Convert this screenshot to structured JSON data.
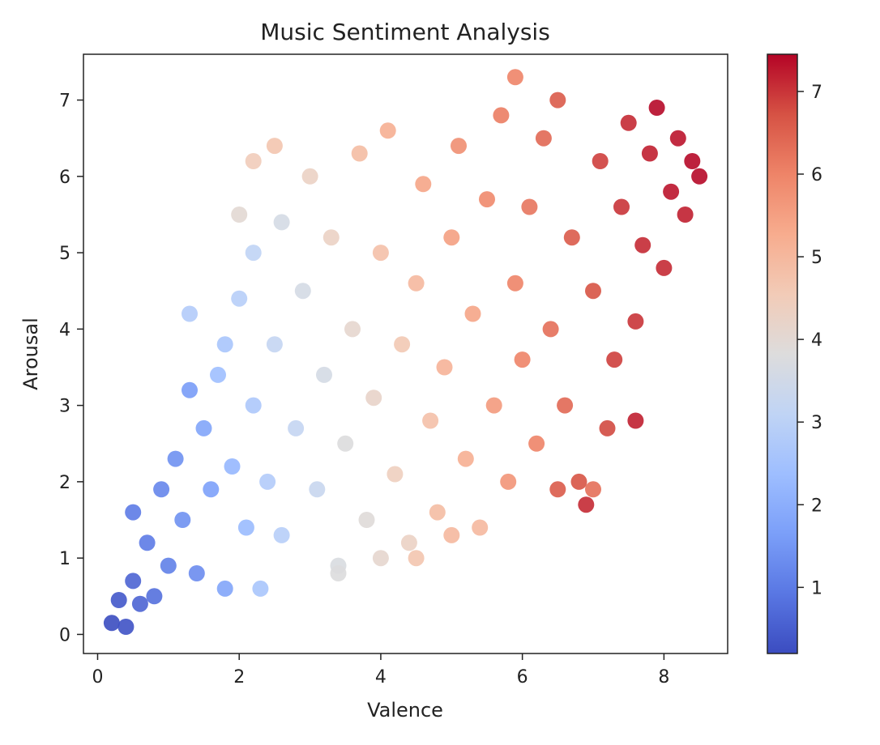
{
  "chart_data": {
    "type": "scatter",
    "title": "Music Sentiment Analysis",
    "xlabel": "Valence",
    "ylabel": "Arousal",
    "xlim": [
      -0.2,
      8.9
    ],
    "ylim": [
      -0.25,
      7.6
    ],
    "x_ticks": [
      {
        "value": 0,
        "label": "0"
      },
      {
        "value": 2,
        "label": "2"
      },
      {
        "value": 4,
        "label": "4"
      },
      {
        "value": 6,
        "label": "6"
      },
      {
        "value": 8,
        "label": "8"
      }
    ],
    "y_ticks": [
      {
        "value": 0,
        "label": "0"
      },
      {
        "value": 1,
        "label": "1"
      },
      {
        "value": 2,
        "label": "2"
      },
      {
        "value": 3,
        "label": "3"
      },
      {
        "value": 4,
        "label": "4"
      },
      {
        "value": 5,
        "label": "5"
      },
      {
        "value": 6,
        "label": "6"
      },
      {
        "value": 7,
        "label": "7"
      }
    ],
    "grid": false,
    "colormap": "coolwarm",
    "colorbar": {
      "range": [
        0.2,
        7.45
      ],
      "ticks": [
        {
          "value": 1,
          "label": "1"
        },
        {
          "value": 2,
          "label": "2"
        },
        {
          "value": 3,
          "label": "3"
        },
        {
          "value": 4,
          "label": "4"
        },
        {
          "value": 5,
          "label": "5"
        },
        {
          "value": 6,
          "label": "6"
        },
        {
          "value": 7,
          "label": "7"
        }
      ],
      "color_stops": [
        "#3b4cc0",
        "#5977e3",
        "#7b9ff9",
        "#9ebeff",
        "#c0d4f5",
        "#dddcdc",
        "#f2cbb7",
        "#f7ac8e",
        "#ee8468",
        "#d65244",
        "#b40426"
      ]
    },
    "points": [
      {
        "x": 0.2,
        "y": 0.15,
        "c": 0.2
      },
      {
        "x": 0.3,
        "y": 0.45,
        "c": 0.4
      },
      {
        "x": 0.4,
        "y": 0.1,
        "c": 0.3
      },
      {
        "x": 0.5,
        "y": 0.7,
        "c": 0.6
      },
      {
        "x": 0.6,
        "y": 0.4,
        "c": 0.6
      },
      {
        "x": 0.5,
        "y": 1.6,
        "c": 1.0
      },
      {
        "x": 0.7,
        "y": 1.2,
        "c": 1.0
      },
      {
        "x": 0.8,
        "y": 0.5,
        "c": 0.8
      },
      {
        "x": 0.9,
        "y": 1.9,
        "c": 1.2
      },
      {
        "x": 1.0,
        "y": 0.9,
        "c": 1.1
      },
      {
        "x": 1.1,
        "y": 2.3,
        "c": 1.4
      },
      {
        "x": 1.2,
        "y": 1.5,
        "c": 1.4
      },
      {
        "x": 1.3,
        "y": 3.2,
        "c": 1.6
      },
      {
        "x": 1.4,
        "y": 0.8,
        "c": 1.3
      },
      {
        "x": 1.5,
        "y": 2.7,
        "c": 1.8
      },
      {
        "x": 1.6,
        "y": 1.9,
        "c": 1.7
      },
      {
        "x": 1.3,
        "y": 4.2,
        "c": 2.8
      },
      {
        "x": 1.7,
        "y": 3.4,
        "c": 2.4
      },
      {
        "x": 1.8,
        "y": 0.6,
        "c": 1.8
      },
      {
        "x": 1.9,
        "y": 2.2,
        "c": 2.2
      },
      {
        "x": 2.0,
        "y": 4.4,
        "c": 2.9
      },
      {
        "x": 2.1,
        "y": 1.4,
        "c": 2.3
      },
      {
        "x": 2.2,
        "y": 3.0,
        "c": 2.7
      },
      {
        "x": 2.2,
        "y": 5.0,
        "c": 3.1
      },
      {
        "x": 2.3,
        "y": 0.6,
        "c": 2.6
      },
      {
        "x": 2.4,
        "y": 2.0,
        "c": 2.8
      },
      {
        "x": 2.5,
        "y": 3.8,
        "c": 3.2
      },
      {
        "x": 2.6,
        "y": 5.4,
        "c": 3.6
      },
      {
        "x": 2.6,
        "y": 1.3,
        "c": 2.9
      },
      {
        "x": 2.8,
        "y": 2.7,
        "c": 3.2
      },
      {
        "x": 2.9,
        "y": 4.5,
        "c": 3.6
      },
      {
        "x": 3.0,
        "y": 6.0,
        "c": 4.3
      },
      {
        "x": 3.1,
        "y": 1.9,
        "c": 3.3
      },
      {
        "x": 3.2,
        "y": 3.4,
        "c": 3.6
      },
      {
        "x": 3.3,
        "y": 5.2,
        "c": 4.3
      },
      {
        "x": 3.4,
        "y": 0.9,
        "c": 3.7
      },
      {
        "x": 3.5,
        "y": 2.5,
        "c": 3.8
      },
      {
        "x": 3.6,
        "y": 4.0,
        "c": 4.1
      },
      {
        "x": 3.7,
        "y": 6.3,
        "c": 4.9
      },
      {
        "x": 3.8,
        "y": 1.5,
        "c": 3.9
      },
      {
        "x": 3.9,
        "y": 3.1,
        "c": 4.2
      },
      {
        "x": 4.0,
        "y": 5.0,
        "c": 4.8
      },
      {
        "x": 4.1,
        "y": 6.6,
        "c": 5.2
      },
      {
        "x": 4.2,
        "y": 2.1,
        "c": 4.4
      },
      {
        "x": 4.3,
        "y": 3.8,
        "c": 4.6
      },
      {
        "x": 4.4,
        "y": 1.2,
        "c": 4.3
      },
      {
        "x": 4.5,
        "y": 4.6,
        "c": 5.0
      },
      {
        "x": 4.6,
        "y": 5.9,
        "c": 5.4
      },
      {
        "x": 4.7,
        "y": 2.8,
        "c": 4.8
      },
      {
        "x": 4.8,
        "y": 1.6,
        "c": 4.9
      },
      {
        "x": 4.9,
        "y": 3.5,
        "c": 5.1
      },
      {
        "x": 5.0,
        "y": 5.2,
        "c": 5.5
      },
      {
        "x": 5.1,
        "y": 6.4,
        "c": 5.8
      },
      {
        "x": 5.2,
        "y": 2.3,
        "c": 5.2
      },
      {
        "x": 5.3,
        "y": 4.2,
        "c": 5.4
      },
      {
        "x": 5.4,
        "y": 1.4,
        "c": 5.0
      },
      {
        "x": 5.5,
        "y": 5.7,
        "c": 5.9
      },
      {
        "x": 5.6,
        "y": 3.0,
        "c": 5.6
      },
      {
        "x": 5.7,
        "y": 6.8,
        "c": 6.1
      },
      {
        "x": 5.8,
        "y": 2.0,
        "c": 5.7
      },
      {
        "x": 5.9,
        "y": 4.6,
        "c": 6.0
      },
      {
        "x": 5.9,
        "y": 7.3,
        "c": 6.0
      },
      {
        "x": 6.0,
        "y": 3.6,
        "c": 6.0
      },
      {
        "x": 6.1,
        "y": 5.6,
        "c": 6.2
      },
      {
        "x": 6.2,
        "y": 2.5,
        "c": 6.0
      },
      {
        "x": 6.3,
        "y": 6.5,
        "c": 6.4
      },
      {
        "x": 6.4,
        "y": 4.0,
        "c": 6.3
      },
      {
        "x": 6.5,
        "y": 7.0,
        "c": 6.6
      },
      {
        "x": 6.6,
        "y": 3.0,
        "c": 6.4
      },
      {
        "x": 6.7,
        "y": 5.2,
        "c": 6.6
      },
      {
        "x": 6.8,
        "y": 2.0,
        "c": 6.7
      },
      {
        "x": 6.9,
        "y": 1.7,
        "c": 7.1
      },
      {
        "x": 7.0,
        "y": 4.5,
        "c": 6.7
      },
      {
        "x": 7.1,
        "y": 6.2,
        "c": 6.9
      },
      {
        "x": 7.2,
        "y": 2.7,
        "c": 6.8
      },
      {
        "x": 7.3,
        "y": 3.6,
        "c": 6.9
      },
      {
        "x": 7.4,
        "y": 5.6,
        "c": 7.0
      },
      {
        "x": 7.5,
        "y": 6.7,
        "c": 7.1
      },
      {
        "x": 7.6,
        "y": 4.1,
        "c": 7.0
      },
      {
        "x": 7.6,
        "y": 2.8,
        "c": 7.2
      },
      {
        "x": 7.7,
        "y": 5.1,
        "c": 7.1
      },
      {
        "x": 7.8,
        "y": 6.3,
        "c": 7.2
      },
      {
        "x": 7.9,
        "y": 6.9,
        "c": 7.4
      },
      {
        "x": 8.0,
        "y": 4.8,
        "c": 7.1
      },
      {
        "x": 8.1,
        "y": 5.8,
        "c": 7.3
      },
      {
        "x": 8.2,
        "y": 6.5,
        "c": 7.3
      },
      {
        "x": 8.3,
        "y": 5.5,
        "c": 7.2
      },
      {
        "x": 8.4,
        "y": 6.2,
        "c": 7.4
      },
      {
        "x": 8.5,
        "y": 6.0,
        "c": 7.4
      },
      {
        "x": 4.0,
        "y": 1.0,
        "c": 4.1
      },
      {
        "x": 3.4,
        "y": 0.8,
        "c": 3.8
      },
      {
        "x": 2.0,
        "y": 5.5,
        "c": 4.0
      },
      {
        "x": 2.2,
        "y": 6.2,
        "c": 4.5
      },
      {
        "x": 2.5,
        "y": 6.4,
        "c": 4.7
      },
      {
        "x": 1.8,
        "y": 3.8,
        "c": 2.6
      },
      {
        "x": 6.5,
        "y": 1.9,
        "c": 6.6
      },
      {
        "x": 7.0,
        "y": 1.9,
        "c": 6.3
      },
      {
        "x": 5.0,
        "y": 1.3,
        "c": 5.0
      },
      {
        "x": 4.5,
        "y": 1.0,
        "c": 4.7
      }
    ]
  }
}
